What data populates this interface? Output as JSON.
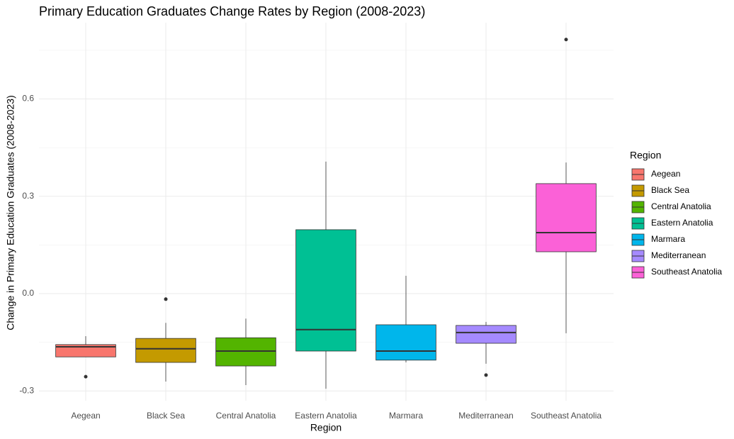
{
  "chart_data": {
    "type": "box",
    "title": "Primary Education Graduates Change Rates by Region (2008-2023)",
    "x_label": "Region",
    "y_label": "Change in Primary Education Graduates (2008-2023)",
    "legend_title": "Region",
    "legend_position": "right",
    "grid": true,
    "categories": [
      "Aegean",
      "Black Sea",
      "Central Anatolia",
      "Eastern Anatolia",
      "Marmara",
      "Mediterranean",
      "Southeast Anatolia"
    ],
    "colors": [
      "#F8766D",
      "#C49A00",
      "#53B400",
      "#00C094",
      "#00B6EB",
      "#A58AFF",
      "#FB61D7"
    ],
    "boxes": [
      {
        "min": -0.195,
        "q1": -0.195,
        "median": -0.164,
        "q3": -0.157,
        "max": -0.131,
        "outliers": [
          -0.256
        ]
      },
      {
        "min": -0.271,
        "q1": -0.212,
        "median": -0.17,
        "q3": -0.138,
        "max": -0.09,
        "outliers": [
          -0.017
        ]
      },
      {
        "min": -0.282,
        "q1": -0.223,
        "median": -0.177,
        "q3": -0.136,
        "max": -0.077,
        "outliers": []
      },
      {
        "min": -0.293,
        "q1": -0.177,
        "median": -0.111,
        "q3": 0.197,
        "max": 0.407,
        "outliers": []
      },
      {
        "min": -0.212,
        "q1": -0.205,
        "median": -0.177,
        "q3": -0.096,
        "max": 0.055,
        "outliers": []
      },
      {
        "min": -0.216,
        "q1": -0.153,
        "median": -0.12,
        "q3": -0.098,
        "max": -0.087,
        "outliers": [
          -0.251
        ]
      },
      {
        "min": -0.122,
        "q1": 0.129,
        "median": 0.188,
        "q3": 0.339,
        "max": 0.404,
        "outliers": [
          0.783
        ]
      }
    ],
    "ylim": [
      -0.33,
      0.835
    ],
    "yticks": [
      {
        "value": -0.3,
        "label": "-0.3"
      },
      {
        "value": 0,
        "label": "0.0"
      },
      {
        "value": 0.3,
        "label": "0.3"
      },
      {
        "value": 0.6,
        "label": "0.6"
      }
    ]
  }
}
